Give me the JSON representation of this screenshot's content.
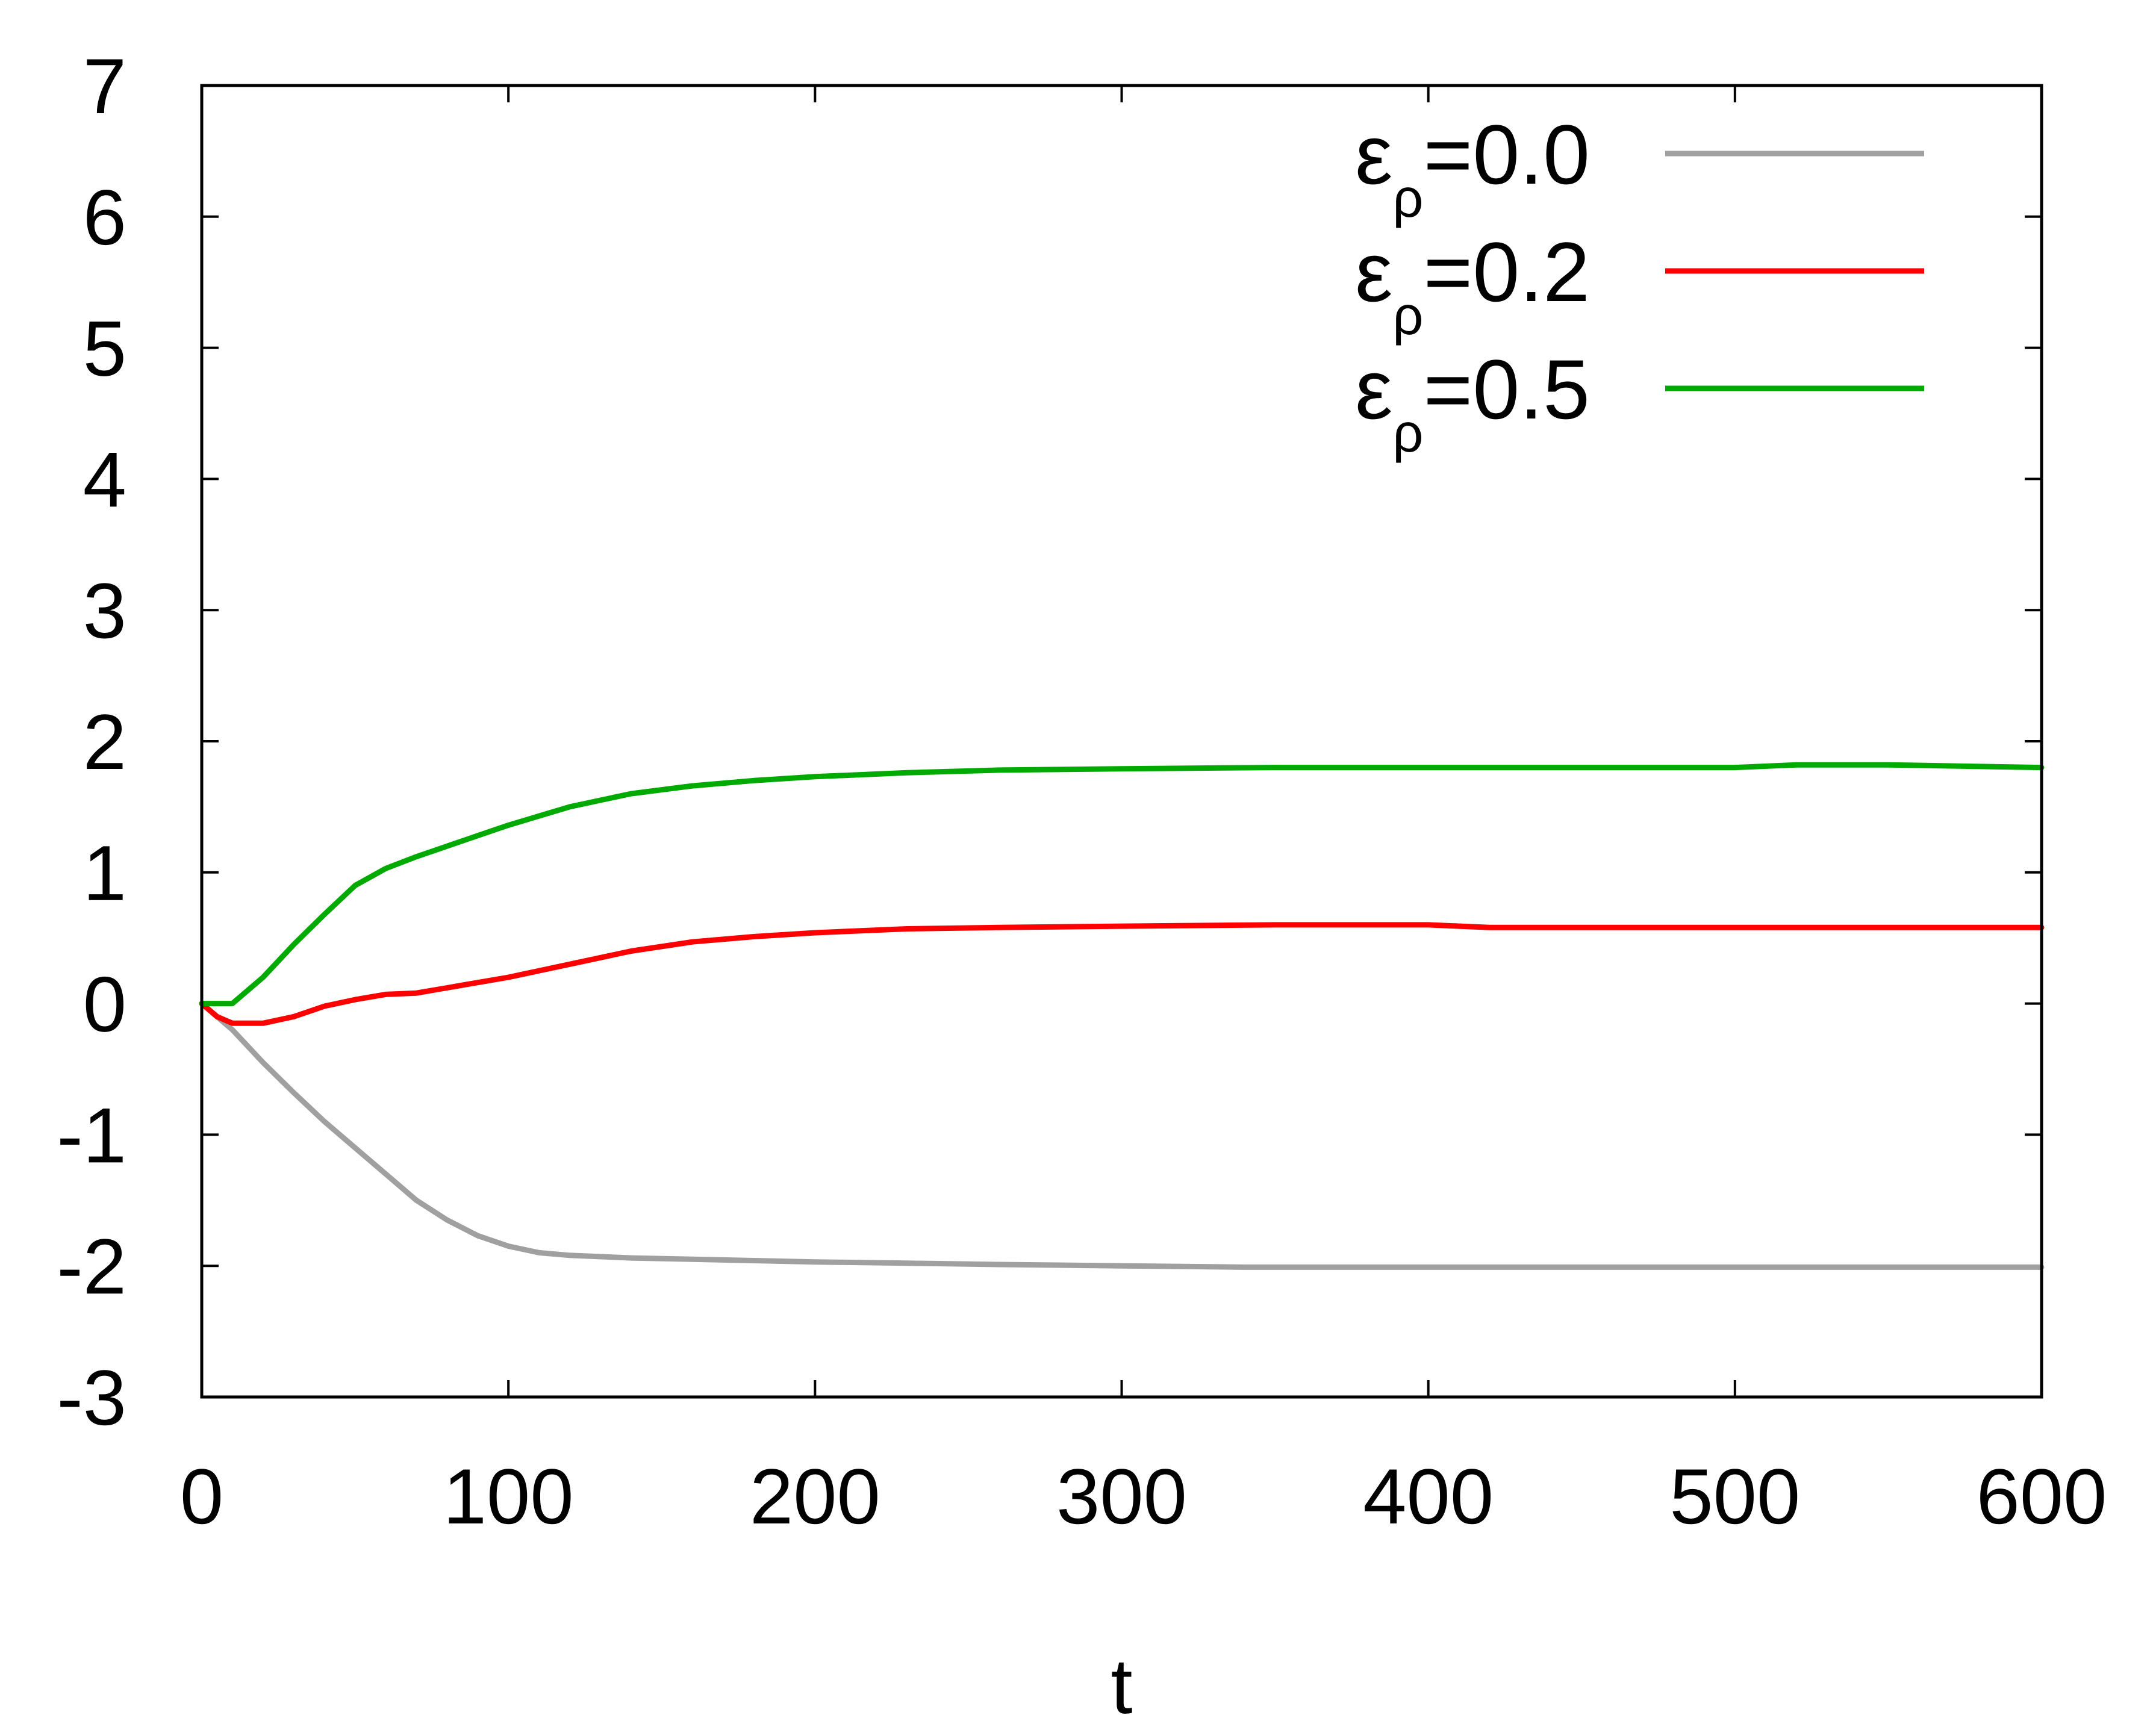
{
  "chart_data": {
    "type": "line",
    "title": "",
    "xlabel": "t",
    "ylabel": "",
    "xlim": [
      0,
      600
    ],
    "ylim": [
      -3,
      7
    ],
    "xticks": [
      0,
      100,
      200,
      300,
      400,
      500,
      600
    ],
    "yticks": [
      -3,
      -2,
      -1,
      0,
      1,
      2,
      3,
      4,
      5,
      6,
      7
    ],
    "xtick_labels": [
      "0",
      "100",
      "200",
      "300",
      "400",
      "500",
      "600"
    ],
    "ytick_labels": [
      "-3",
      "-2",
      "-1",
      "0",
      "1",
      "2",
      "3",
      "4",
      "5",
      "6",
      "7"
    ],
    "grid": false,
    "legend_position": "top-right",
    "series": [
      {
        "name": "ε_ρ=0.0",
        "legend_main": "ε",
        "legend_sub": "ρ",
        "legend_value": "=0.0",
        "color": "#a0a0a0",
        "x": [
          0,
          10,
          20,
          30,
          40,
          50,
          60,
          70,
          80,
          90,
          100,
          110,
          120,
          140,
          160,
          180,
          200,
          230,
          260,
          300,
          340,
          400,
          450,
          500,
          550,
          600
        ],
        "y": [
          0,
          -0.2,
          -0.45,
          -0.68,
          -0.9,
          -1.1,
          -1.3,
          -1.5,
          -1.65,
          -1.77,
          -1.85,
          -1.9,
          -1.92,
          -1.94,
          -1.95,
          -1.96,
          -1.97,
          -1.98,
          -1.99,
          -2.0,
          -2.01,
          -2.01,
          -2.01,
          -2.01,
          -2.01,
          -2.01
        ]
      },
      {
        "name": "ε_ρ=0.2",
        "legend_main": "ε",
        "legend_sub": "ρ",
        "legend_value": "=0.2",
        "color": "#ff0000",
        "x": [
          0,
          5,
          10,
          20,
          30,
          40,
          50,
          60,
          70,
          80,
          100,
          120,
          140,
          160,
          180,
          200,
          230,
          260,
          300,
          350,
          400,
          420,
          450,
          500,
          550,
          600
        ],
        "y": [
          0,
          -0.1,
          -0.15,
          -0.15,
          -0.1,
          -0.02,
          0.03,
          0.07,
          0.08,
          0.12,
          0.2,
          0.3,
          0.4,
          0.47,
          0.51,
          0.54,
          0.57,
          0.58,
          0.59,
          0.6,
          0.6,
          0.58,
          0.58,
          0.58,
          0.58,
          0.58
        ]
      },
      {
        "name": "ε_ρ=0.5",
        "legend_main": "ε",
        "legend_sub": "ρ",
        "legend_value": "=0.5",
        "color": "#00aa00",
        "x": [
          0,
          5,
          10,
          20,
          30,
          40,
          50,
          60,
          70,
          80,
          90,
          100,
          120,
          140,
          160,
          180,
          200,
          230,
          260,
          300,
          350,
          400,
          450,
          500,
          520,
          550,
          600
        ],
        "y": [
          0,
          0,
          0,
          0.2,
          0.45,
          0.68,
          0.9,
          1.03,
          1.12,
          1.2,
          1.28,
          1.36,
          1.5,
          1.6,
          1.66,
          1.7,
          1.73,
          1.76,
          1.78,
          1.79,
          1.8,
          1.8,
          1.8,
          1.8,
          1.82,
          1.82,
          1.8
        ]
      }
    ]
  }
}
